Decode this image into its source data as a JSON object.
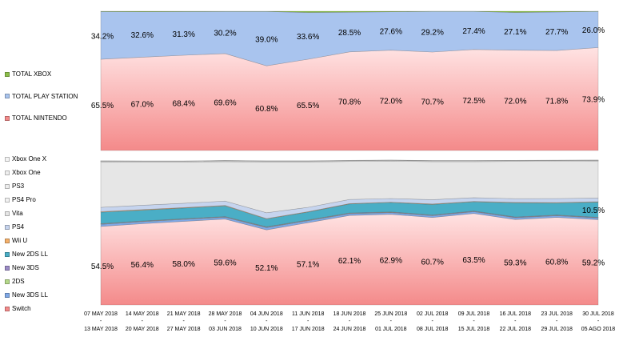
{
  "chart_data": [
    {
      "type": "area",
      "stacking": "percent",
      "x_start": [
        "07 MAY 2018",
        "14 MAY 2018",
        "21 MAY 2018",
        "28 MAY 2018",
        "04 JUN 2018",
        "11 JUN 2018",
        "18 JUN 2018",
        "25 JUN 2018",
        "02 JUL 2018",
        "09 JUL 2018",
        "16 JUL 2018",
        "23 JUL 2018",
        "30 JUL 2018"
      ],
      "x_end": [
        "13 MAY 2018",
        "20 MAY 2018",
        "27 MAY 2018",
        "03 JUN 2018",
        "10 JUN 2018",
        "17 JUN 2018",
        "24 JUN 2018",
        "01 JUL 2018",
        "08 JUL 2018",
        "15 JUL 2018",
        "22 JUL 2018",
        "29 JUL 2018",
        "05 AGO 2018"
      ],
      "series": [
        {
          "name": "TOTAL NINTENDO",
          "color": "#f48a8a",
          "values": [
            65.5,
            67.0,
            68.4,
            69.6,
            60.8,
            65.5,
            70.8,
            72.0,
            70.7,
            72.5,
            72.0,
            71.8,
            73.9
          ],
          "labels": [
            "65.5%",
            "67.0%",
            "68.4%",
            "69.6%",
            "60.8%",
            "65.5%",
            "70.8%",
            "72.0%",
            "70.7%",
            "72.5%",
            "72.0%",
            "71.8%",
            "73.9%"
          ]
        },
        {
          "name": "TOTAL PLAY STATION",
          "color": "#a9c4ee",
          "values": [
            34.2,
            32.6,
            31.3,
            30.2,
            39.0,
            33.6,
            28.5,
            27.6,
            29.2,
            27.4,
            27.1,
            27.7,
            26.0
          ],
          "labels": [
            "34.2%",
            "32.6%",
            "31.3%",
            "30.2%",
            "39.0%",
            "33.6%",
            "28.5%",
            "27.6%",
            "29.2%",
            "27.4%",
            "27.1%",
            "27.7%",
            "26.0%"
          ]
        },
        {
          "name": "TOTAL XBOX",
          "color": "#8cbf4a",
          "values": [
            0.3,
            0.4,
            0.3,
            0.2,
            0.2,
            0.9,
            0.7,
            0.4,
            0.1,
            0.1,
            0.9,
            0.5,
            0.1
          ]
        }
      ],
      "ylim": [
        0,
        100
      ],
      "legend_position": "left"
    },
    {
      "type": "area",
      "stacking": "percent",
      "x_start": [
        "07 MAY 2018",
        "14 MAY 2018",
        "21 MAY 2018",
        "28 MAY 2018",
        "04 JUN 2018",
        "11 JUN 2018",
        "18 JUN 2018",
        "25 JUN 2018",
        "02 JUL 2018",
        "09 JUL 2018",
        "16 JUL 2018",
        "23 JUL 2018",
        "30 JUL 2018"
      ],
      "x_end": [
        "13 MAY 2018",
        "20 MAY 2018",
        "27 MAY 2018",
        "03 JUN 2018",
        "10 JUN 2018",
        "17 JUN 2018",
        "24 JUN 2018",
        "01 JUL 2018",
        "08 JUL 2018",
        "15 JUL 2018",
        "22 JUL 2018",
        "29 JUL 2018",
        "05 AGO 2018"
      ],
      "series": [
        {
          "name": "Switch",
          "color": "#f48a8a",
          "values": [
            54.5,
            56.4,
            58.0,
            59.6,
            52.1,
            57.1,
            62.1,
            62.9,
            60.7,
            63.5,
            59.3,
            60.8,
            59.2
          ],
          "labels": [
            "54.5%",
            "56.4%",
            "58.0%",
            "59.6%",
            "52.1%",
            "57.1%",
            "62.1%",
            "62.9%",
            "60.7%",
            "63.5%",
            "59.3%",
            "60.8%",
            "59.2%"
          ]
        },
        {
          "name": "New 3DS LL",
          "color": "#7fa8e6",
          "values": [
            1.5,
            1.4,
            1.4,
            1.3,
            1.6,
            1.4,
            1.3,
            1.2,
            1.3,
            1.2,
            1.3,
            1.2,
            1.2
          ]
        },
        {
          "name": "2DS",
          "color": "#b5d98a",
          "values": [
            0.2,
            0.2,
            0.2,
            0.2,
            0.3,
            0.2,
            0.2,
            0.2,
            0.2,
            0.2,
            0.2,
            0.2,
            0.2
          ]
        },
        {
          "name": "New 3DS",
          "color": "#9b8bc6",
          "values": [
            0.3,
            0.3,
            0.3,
            0.3,
            0.3,
            0.3,
            0.3,
            0.3,
            0.3,
            0.3,
            0.3,
            0.3,
            0.3
          ]
        },
        {
          "name": "New 2DS LL",
          "color": "#4aaec6",
          "values": [
            7.9,
            7.5,
            7.4,
            7.4,
            5.4,
            5.5,
            6.2,
            6.5,
            7.3,
            6.4,
            9.8,
            8.3,
            10.5
          ],
          "labels": [
            "",
            "",
            "",
            "",
            "",
            "",
            "",
            "",
            "",
            "",
            "",
            "",
            "10.5%"
          ]
        },
        {
          "name": "Wii U",
          "color": "#f5b06a",
          "values": [
            0.4,
            0.4,
            0.3,
            0.3,
            0.3,
            0.3,
            0.3,
            0.3,
            0.3,
            0.3,
            0.3,
            0.3,
            0.3
          ]
        },
        {
          "name": "PS4",
          "color": "#c6d4ee",
          "values": [
            3.0,
            3.0,
            3.0,
            3.0,
            4.0,
            3.0,
            2.8,
            2.5,
            3.0,
            2.6,
            2.6,
            2.8,
            2.5
          ]
        },
        {
          "name": "Vita",
          "color": "#e6e6e6",
          "values": [
            31.5,
            30.0,
            28.6,
            27.4,
            35.3,
            31.5,
            26.4,
            25.9,
            26.4,
            25.0,
            25.8,
            25.8,
            25.6
          ]
        },
        {
          "name": "PS4 Pro",
          "color": "#f2f2f2",
          "values": [
            0.5,
            0.5,
            0.5,
            0.5,
            0.5,
            0.5,
            0.5,
            0.5,
            0.5,
            0.5,
            0.5,
            0.5,
            0.5
          ]
        },
        {
          "name": "PS3",
          "color": "#eeeeee",
          "values": [
            0.1,
            0.1,
            0.1,
            0.1,
            0.1,
            0.1,
            0.1,
            0.1,
            0.1,
            0.1,
            0.1,
            0.1,
            0.1
          ]
        },
        {
          "name": "Xbox One",
          "color": "#efefef",
          "values": [
            0.1,
            0.1,
            0.1,
            0.1,
            0.1,
            0.1,
            0.1,
            0.1,
            0.1,
            0.1,
            0.1,
            0.1,
            0.1
          ]
        },
        {
          "name": "Xbox One X",
          "color": "#f4f4f4",
          "values": [
            0.1,
            0.1,
            0.1,
            0.1,
            0.1,
            0.1,
            0.1,
            0.1,
            0.1,
            0.1,
            0.1,
            0.1,
            0.1
          ]
        }
      ],
      "ylim": [
        0,
        100
      ],
      "legend_position": "left"
    }
  ]
}
